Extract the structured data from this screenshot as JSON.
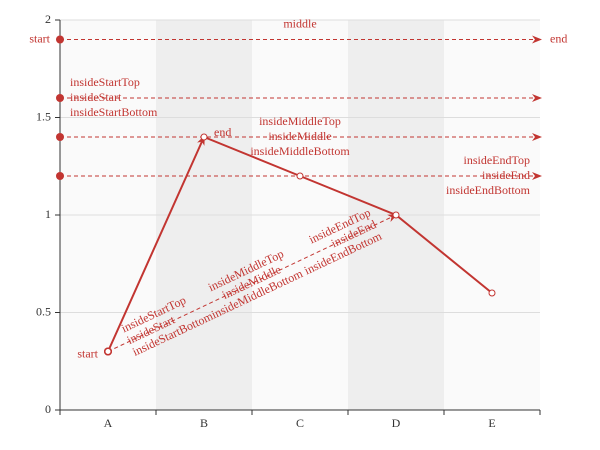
{
  "chart_data": {
    "type": "line",
    "title": "",
    "xlabel": "",
    "ylabel": "",
    "categories": [
      "A",
      "B",
      "C",
      "D",
      "E"
    ],
    "ylim": [
      0,
      2
    ],
    "yticks": [
      0,
      0.5,
      1,
      1.5,
      2
    ],
    "ytick_labels": [
      "0",
      "0.5",
      "1",
      "1.5",
      "2"
    ],
    "grid": true,
    "split_area_shading": "alternating columns (B, D shaded)",
    "colors": {
      "series": "#c23531",
      "axis": "#333333",
      "grid": "#dddddd",
      "shade_light": "#fafafa",
      "shade_dark": "#eeeeee"
    },
    "series": [
      {
        "values": [
          0.3,
          1.4,
          1.2,
          1.0,
          0.6
        ]
      }
    ],
    "markLines": {
      "horizontal": [
        {
          "y": 1.9,
          "labels": [
            "start",
            "middle",
            "end"
          ]
        },
        {
          "y": 1.6,
          "labels": [
            "insideStartTop",
            "insideStart",
            "insideStartBottom"
          ]
        },
        {
          "y": 1.4,
          "labels": [
            "insideMiddleTop",
            "insideMiddle",
            "insideMiddleBottom"
          ]
        },
        {
          "y": 1.2,
          "labels": [
            "insideEndTop",
            "insideEnd",
            "insideEndBottom"
          ]
        }
      ],
      "diagonal": [
        {
          "from": {
            "x": "A",
            "y": 0.3
          },
          "to": {
            "x": "B",
            "y": 1.4
          },
          "labels": [
            "start",
            "end"
          ]
        },
        {
          "from": {
            "x": "A",
            "y": 0.3
          },
          "to": {
            "x": "D",
            "y": 1.0
          },
          "labels": [
            "insideStartTop",
            "insideStart",
            "insideStartBottom",
            "insideMiddleTop",
            "insideMiddle",
            "insideMiddleBottom",
            "insideEndTop",
            "insideEnd",
            "insideEndBottom"
          ]
        }
      ]
    },
    "label_text": {
      "start": "start",
      "middle": "middle",
      "end": "end",
      "insideStartTop": "insideStartTop",
      "insideStart": "insideStart",
      "insideStartBottom": "insideStartBottom",
      "insideMiddleTop": "insideMiddleTop",
      "insideMiddle": "insideMiddle",
      "insideMiddleBottom": "insideMiddleBottom",
      "insideEndTop": "insideEndTop",
      "insideEnd": "insideEnd",
      "insideEndBottom": "insideEndBottom"
    }
  }
}
